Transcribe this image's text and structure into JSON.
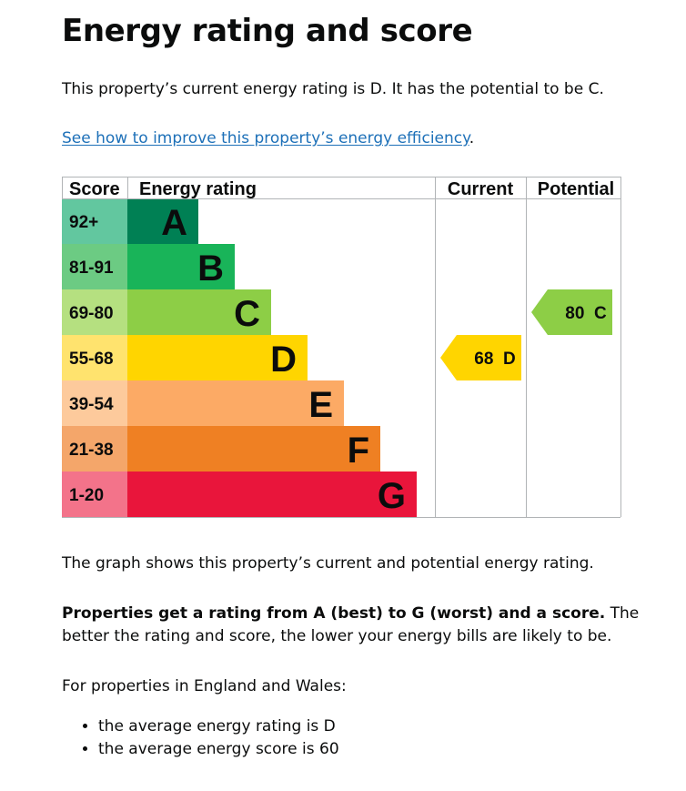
{
  "heading": "Energy rating and score",
  "intro": "This property’s current energy rating is D. It has the potential to be C.",
  "improve_link": "See how to improve this property’s energy efficiency",
  "improve_link_suffix": ".",
  "chart_data": {
    "type": "bar",
    "headers": {
      "score": "Score",
      "rating": "Energy rating",
      "current": "Current",
      "potential": "Potential"
    },
    "bands": [
      {
        "score": "92+",
        "letter": "A",
        "bar_color": "#008054",
        "score_color": "#62c79f"
      },
      {
        "score": "81-91",
        "letter": "B",
        "bar_color": "#19b459",
        "score_color": "#6ccb83"
      },
      {
        "score": "69-80",
        "letter": "C",
        "bar_color": "#8dce46",
        "score_color": "#b5e080"
      },
      {
        "score": "55-68",
        "letter": "D",
        "bar_color": "#ffd500",
        "score_color": "#ffe36e"
      },
      {
        "score": "39-54",
        "letter": "E",
        "bar_color": "#fcaa65",
        "score_color": "#fdca9c"
      },
      {
        "score": "21-38",
        "letter": "F",
        "bar_color": "#ef8023",
        "score_color": "#f4a66a"
      },
      {
        "score": "1-20",
        "letter": "G",
        "bar_color": "#e9153b",
        "score_color": "#f3738a"
      }
    ],
    "current": {
      "score": 68,
      "letter": "D",
      "label": "68  D",
      "color": "#ffd500"
    },
    "potential": {
      "score": 80,
      "letter": "C",
      "label": "80  C",
      "color": "#8dce46"
    }
  },
  "graph_desc": "The graph shows this property’s current and potential energy rating.",
  "properties_bold": "Properties get a rating from A (best) to G (worst) and a score.",
  "properties_rest": " The better the rating and score, the lower your energy bills are likely to be.",
  "england_wales": "For properties in England and Wales:",
  "averages": [
    "the average energy rating is D",
    "the average energy score is 60"
  ]
}
